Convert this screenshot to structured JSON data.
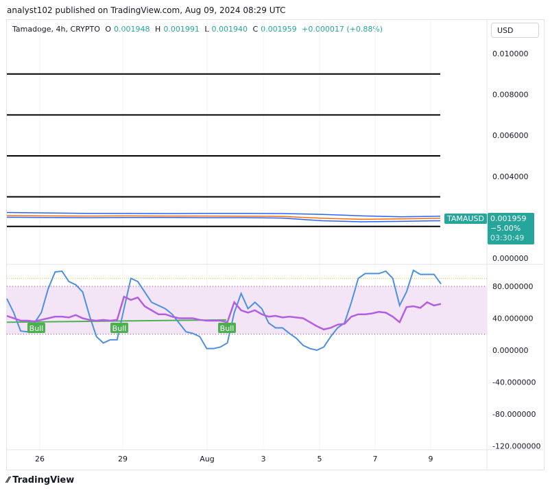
{
  "header": {
    "published": "analyst102 published on TradingView.com, Aug 09, 2024 08:29 UTC"
  },
  "legend": {
    "symbol": "Tamadoge, 4h, CRYPTO",
    "o_label": "O",
    "o": "0.001948",
    "h_label": "H",
    "h": "0.001991",
    "l_label": "L",
    "l": "0.001940",
    "c_label": "C",
    "c": "0.001959",
    "change": "+0.000017 (+0.88%)"
  },
  "currency": "USD",
  "price_axis": [
    "0.010000",
    "0.008000",
    "0.006000",
    "0.004000",
    "0.000000"
  ],
  "price_tag": {
    "symbol": "TAMAUSD",
    "price": "0.001959",
    "change": "−5.00%",
    "countdown": "03:30:49"
  },
  "osc_axis": [
    "80.000000",
    "40.000000",
    "0.000000",
    "-40.000000",
    "-80.000000",
    "-120.000000"
  ],
  "date_axis": [
    "26",
    "29",
    "Aug",
    "3",
    "5",
    "7",
    "9"
  ],
  "colors": {
    "accent": "#26a69a",
    "stoch": "#4a90e2",
    "rsi": "#b35ce6",
    "ma": "#4caf50",
    "band": "#f3e5f5"
  },
  "horizontal_levels": [
    0.009,
    0.007,
    0.005,
    0.003,
    0.00155
  ],
  "signals": [
    "Bull",
    "Bull",
    "Bull"
  ],
  "chart_data": {
    "type": "line",
    "price_ylim": [
      0,
      0.0105
    ],
    "osc_ylim": [
      -130,
      105
    ],
    "osc_bands": [
      20,
      80
    ],
    "stoch": [
      64.5,
      47,
      24,
      23,
      34,
      47,
      77,
      98,
      99,
      86,
      82,
      73,
      43,
      17,
      9,
      13,
      13,
      52,
      90,
      86,
      73,
      60,
      56,
      52,
      45,
      34,
      23,
      21,
      17,
      2,
      2,
      4,
      9,
      47,
      71,
      52,
      60,
      52,
      34,
      28,
      28,
      21,
      15,
      6,
      2,
      0,
      4,
      17,
      28,
      34,
      60,
      90,
      96,
      96,
      96,
      99,
      90,
      56,
      73,
      100,
      95,
      95,
      95,
      83
    ],
    "rsi": [
      43,
      40,
      37,
      37,
      36,
      38,
      40,
      42,
      42,
      41,
      44,
      40,
      38,
      37,
      38,
      37,
      38,
      67,
      63,
      66,
      55,
      50,
      45,
      45,
      42,
      40,
      40,
      40,
      38,
      37,
      37,
      37,
      35,
      60,
      50,
      47,
      50,
      45,
      42,
      43,
      41,
      42,
      41,
      40,
      35,
      30,
      26,
      28,
      32,
      33,
      42,
      45,
      45,
      46,
      48,
      47,
      42,
      35,
      54,
      55,
      53,
      60,
      56,
      58
    ],
    "ma": [
      35,
      38
    ]
  },
  "footer": {
    "brand": "TradingView"
  }
}
